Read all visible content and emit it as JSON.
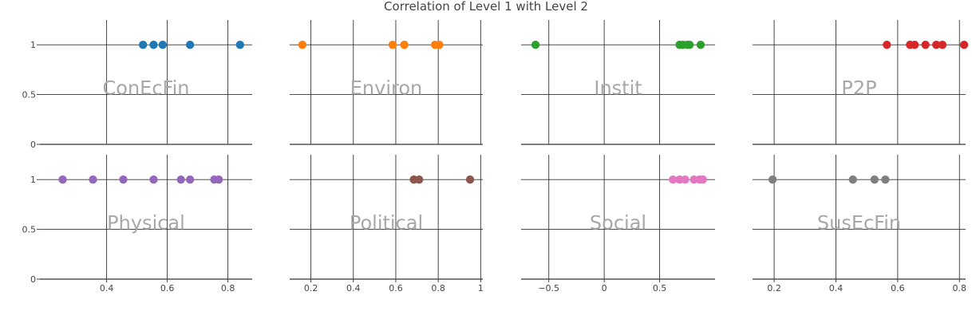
{
  "chart_data": {
    "type": "scatter",
    "title": "Correlation of Level 1 with Level 2",
    "ylim": [
      0,
      1.25
    ],
    "y_ticks": [
      0,
      0.5,
      1
    ],
    "y_tick_labels": [
      "0",
      "0.5",
      "1"
    ],
    "grid": true,
    "legend": "none",
    "panels": [
      {
        "name": "ConEcFin",
        "color": "#1f77b4",
        "xlim": [
          0.18,
          0.88
        ],
        "x": [
          0.52,
          0.555,
          0.585,
          0.675,
          0.84
        ],
        "y": [
          1,
          1,
          1,
          1,
          1
        ]
      },
      {
        "name": "Environ",
        "color": "#ff7f0e",
        "xlim": [
          0.1,
          1.01
        ],
        "x": [
          0.16,
          0.585,
          0.64,
          0.785,
          0.805
        ],
        "y": [
          1,
          1,
          1,
          1,
          1
        ]
      },
      {
        "name": "Instit",
        "color": "#2ca02c",
        "xlim": [
          -0.75,
          1.0
        ],
        "x": [
          -0.62,
          0.68,
          0.71,
          0.75,
          0.77,
          0.87
        ],
        "y": [
          1,
          1,
          1,
          1,
          1,
          1
        ]
      },
      {
        "name": "P2P",
        "color": "#d62728",
        "xlim": [
          0.13,
          0.82
        ],
        "x": [
          0.565,
          0.64,
          0.655,
          0.69,
          0.725,
          0.745,
          0.815
        ],
        "y": [
          1,
          1,
          1,
          1,
          1,
          1,
          1
        ]
      },
      {
        "name": "Physical",
        "color": "#9467bd",
        "xlim": [
          0.18,
          0.88
        ],
        "x": [
          0.255,
          0.355,
          0.455,
          0.555,
          0.645,
          0.675,
          0.755,
          0.77
        ],
        "y": [
          1,
          1,
          1,
          1,
          1,
          1,
          1,
          1
        ]
      },
      {
        "name": "Political",
        "color": "#8c564b",
        "xlim": [
          0.1,
          1.01
        ],
        "x": [
          0.685,
          0.71,
          0.95
        ],
        "y": [
          1,
          1,
          1
        ]
      },
      {
        "name": "Social",
        "color": "#e377c2",
        "xlim": [
          -0.75,
          1.0
        ],
        "x": [
          0.62,
          0.68,
          0.73,
          0.81,
          0.86,
          0.89
        ],
        "y": [
          1,
          1,
          1,
          1,
          1,
          1
        ]
      },
      {
        "name": "SusEcFin",
        "color": "#7f7f7f",
        "xlim": [
          0.13,
          0.82
        ],
        "x": [
          0.195,
          0.455,
          0.525,
          0.56
        ],
        "y": [
          1,
          1,
          1,
          1
        ]
      }
    ],
    "x_ticks_by_column": [
      {
        "values": [
          0.4,
          0.6,
          0.8
        ],
        "labels": [
          "0.4",
          "0.6",
          "0.8"
        ]
      },
      {
        "values": [
          0.2,
          0.4,
          0.6,
          0.8,
          1.0
        ],
        "labels": [
          "0.2",
          "0.4",
          "0.6",
          "0.8",
          "1"
        ]
      },
      {
        "values": [
          -0.5,
          0,
          0.5
        ],
        "labels": [
          "−0.5",
          "0",
          "0.5"
        ]
      },
      {
        "values": [
          0.2,
          0.4,
          0.6,
          0.8
        ],
        "labels": [
          "0.2",
          "0.4",
          "0.6",
          "0.8"
        ]
      }
    ]
  }
}
